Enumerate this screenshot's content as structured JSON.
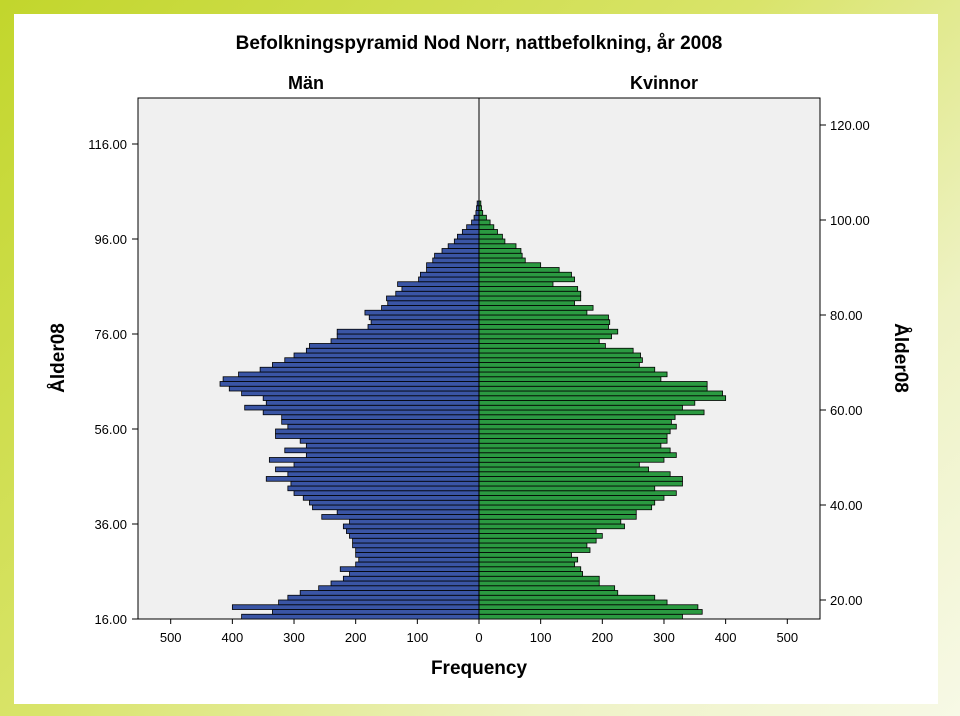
{
  "chart_data": {
    "type": "bar",
    "orientation": "horizontal",
    "title": "Befolkningspyramid Nod Norr, nattbefolkning, år 2008",
    "xlabel": "Frequency",
    "ylabel": "Ålder08",
    "ylabel_right": "Ålder08",
    "xlim": [
      -560,
      560
    ],
    "ylim": [
      16,
      125
    ],
    "x_ticks": [
      "500",
      "400",
      "300",
      "200",
      "100",
      "0",
      "100",
      "200",
      "300",
      "400",
      "500"
    ],
    "y_ticks_left": [
      "16.00",
      "36.00",
      "56.00",
      "76.00",
      "96.00",
      "116.00"
    ],
    "y_ticks_right": [
      "20.00",
      "40.00",
      "60.00",
      "80.00",
      "100.00",
      "120.00"
    ],
    "grid": false,
    "colors": {
      "male": "#3a55a5",
      "female": "#2b9a41",
      "plot_bg": "#f0f0f0",
      "border": "#000000"
    },
    "series": [
      {
        "name": "Män",
        "ages": [
          16,
          17,
          18,
          19,
          20,
          21,
          22,
          23,
          24,
          25,
          26,
          27,
          28,
          29,
          30,
          31,
          32,
          33,
          34,
          35,
          36,
          37,
          38,
          39,
          40,
          41,
          42,
          43,
          44,
          45,
          46,
          47,
          48,
          49,
          50,
          51,
          52,
          53,
          54,
          55,
          56,
          57,
          58,
          59,
          60,
          61,
          62,
          63,
          64,
          65,
          66,
          67,
          68,
          69,
          70,
          71,
          72,
          73,
          74,
          75,
          76,
          77,
          78,
          79,
          80,
          81,
          82,
          83,
          84,
          85,
          86,
          87,
          88,
          89,
          90,
          91,
          92,
          93,
          94,
          95,
          96,
          97,
          98,
          99,
          100,
          101,
          102,
          103
        ],
        "values": [
          385,
          335,
          400,
          325,
          310,
          290,
          260,
          240,
          220,
          210,
          225,
          200,
          195,
          200,
          200,
          205,
          205,
          210,
          215,
          220,
          210,
          255,
          230,
          270,
          275,
          285,
          300,
          310,
          305,
          345,
          310,
          330,
          300,
          340,
          280,
          315,
          280,
          290,
          330,
          330,
          310,
          320,
          320,
          350,
          380,
          345,
          350,
          385,
          405,
          420,
          415,
          390,
          355,
          335,
          315,
          300,
          280,
          275,
          240,
          230,
          230,
          180,
          175,
          178,
          185,
          158,
          148,
          150,
          135,
          125,
          132,
          98,
          95,
          85,
          85,
          75,
          72,
          60,
          50,
          40,
          35,
          27,
          20,
          12,
          8,
          5,
          4,
          3
        ]
      },
      {
        "name": "Kvinnor",
        "ages": [
          16,
          17,
          18,
          19,
          20,
          21,
          22,
          23,
          24,
          25,
          26,
          27,
          28,
          29,
          30,
          31,
          32,
          33,
          34,
          35,
          36,
          37,
          38,
          39,
          40,
          41,
          42,
          43,
          44,
          45,
          46,
          47,
          48,
          49,
          50,
          51,
          52,
          53,
          54,
          55,
          56,
          57,
          58,
          59,
          60,
          61,
          62,
          63,
          64,
          65,
          66,
          67,
          68,
          69,
          70,
          71,
          72,
          73,
          74,
          75,
          76,
          77,
          78,
          79,
          80,
          81,
          82,
          83,
          84,
          85,
          86,
          87,
          88,
          89,
          90,
          91,
          92,
          93,
          94,
          95,
          96,
          97,
          98,
          99,
          100,
          101,
          102,
          103
        ],
        "values": [
          330,
          362,
          355,
          305,
          285,
          225,
          220,
          195,
          195,
          168,
          165,
          155,
          160,
          150,
          180,
          175,
          190,
          200,
          190,
          236,
          230,
          255,
          255,
          280,
          285,
          300,
          320,
          285,
          330,
          330,
          310,
          275,
          260,
          300,
          320,
          310,
          295,
          305,
          305,
          310,
          320,
          312,
          318,
          365,
          330,
          350,
          400,
          395,
          370,
          370,
          295,
          305,
          285,
          260,
          265,
          262,
          250,
          205,
          195,
          215,
          225,
          210,
          212,
          210,
          175,
          185,
          155,
          165,
          165,
          160,
          120,
          155,
          150,
          130,
          100,
          75,
          70,
          68,
          60,
          42,
          38,
          30,
          24,
          18,
          12,
          6,
          4,
          3
        ]
      }
    ],
    "annotations": {
      "left_header": "Män",
      "right_header": "Kvinnor"
    }
  }
}
